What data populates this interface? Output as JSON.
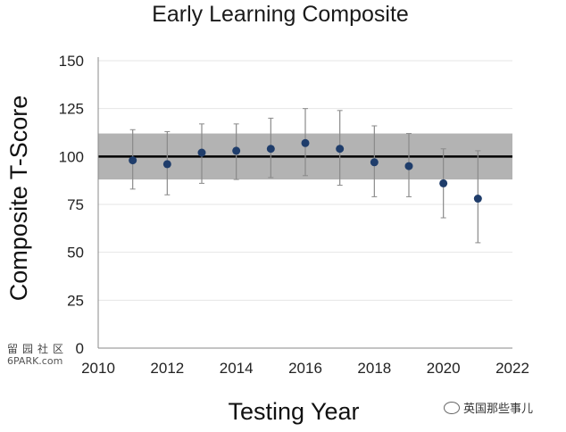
{
  "chart_data": {
    "type": "scatter",
    "title": "Early Learning Composite",
    "xlabel": "Testing Year",
    "ylabel": "Composite T-Score",
    "xlim": [
      2010,
      2022
    ],
    "ylim": [
      0,
      150
    ],
    "xticks": [
      2010,
      2012,
      2014,
      2016,
      2018,
      2020,
      2022
    ],
    "yticks": [
      0,
      25,
      50,
      75,
      100,
      125,
      150
    ],
    "grid": true,
    "reference_line": 100,
    "reference_band": [
      88,
      112
    ],
    "band_color": "#b3b3b3",
    "point_color": "#1f3d6b",
    "points": [
      {
        "x": 2011,
        "y": 98,
        "low": 83,
        "high": 114
      },
      {
        "x": 2012,
        "y": 96,
        "low": 80,
        "high": 113
      },
      {
        "x": 2013,
        "y": 102,
        "low": 86,
        "high": 117
      },
      {
        "x": 2014,
        "y": 103,
        "low": 88,
        "high": 117
      },
      {
        "x": 2015,
        "y": 104,
        "low": 89,
        "high": 120
      },
      {
        "x": 2016,
        "y": 107,
        "low": 90,
        "high": 125
      },
      {
        "x": 2017,
        "y": 104,
        "low": 85,
        "high": 124
      },
      {
        "x": 2018,
        "y": 97,
        "low": 79,
        "high": 116
      },
      {
        "x": 2019,
        "y": 95,
        "low": 79,
        "high": 112
      },
      {
        "x": 2020,
        "y": 86,
        "low": 68,
        "high": 104
      },
      {
        "x": 2021,
        "y": 78,
        "low": 55,
        "high": 103
      }
    ]
  },
  "watermark_left": {
    "cn": "留园社区",
    "en": "6PARK.com"
  },
  "watermark_right": {
    "text": "英国那些事儿"
  }
}
